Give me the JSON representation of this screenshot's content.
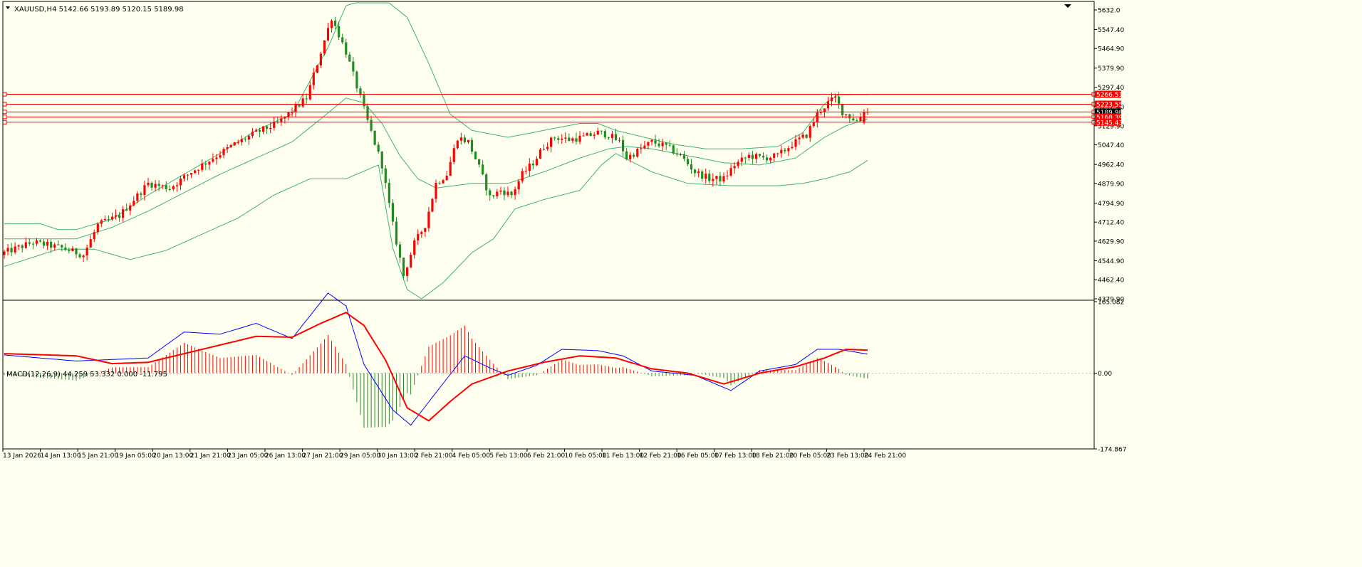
{
  "symbol_header": "XAUUSD,H4  5142.66 5193.89 5120.15 5189.98",
  "macd_header": "MACD(12,26,9) 44.259 53.332 0.000 -11.795",
  "colors": {
    "background": "#fffff0",
    "frame": "#000000",
    "bull": "#ff0000",
    "bear": "#228b22",
    "bands": "#3cb371",
    "level_line": "#ff0000",
    "macd_line": "#0000ff",
    "signal_line": "#ff0000",
    "hist_pos": "#ff0000",
    "hist_neg": "#228b22",
    "badge_text": "#ffffff",
    "current_badge": "#000000"
  },
  "chart_data": [
    {
      "type": "candlestick",
      "symbol": "XAUUSD",
      "timeframe": "H4",
      "ohlc_now": {
        "open": 5142.66,
        "high": 5193.89,
        "low": 5120.15,
        "close": 5189.98
      },
      "y_range": [
        4379.9,
        5632.0
      ],
      "price_ticks": [
        "5632.0",
        "5547.40",
        "5464.90",
        "5379.90",
        "5297.40",
        "5212.40",
        "5129.90",
        "5047.40",
        "4962.40",
        "4879.90",
        "4794.90",
        "4712.40",
        "4629.90",
        "4544.90",
        "4462.40",
        "4379.90"
      ],
      "horizontal_levels": [
        5266.51,
        5223.55,
        5189.98,
        5168.39,
        5145.43
      ],
      "level_labels": [
        "5266.51",
        "5223.55",
        "5189.98",
        "5168.39",
        "5145.43"
      ],
      "current_price_label": "5189.98",
      "x_tick_labels": [
        "13 Jan 2026",
        "14 Jan 13:00",
        "15 Jan 21:00",
        "19 Jan 05:00",
        "20 Jan 13:00",
        "21 Jan 21:00",
        "23 Jan 05:00",
        "26 Jan 13:00",
        "27 Jan 21:00",
        "29 Jan 05:00",
        "30 Jan 13:00",
        "2 Feb 21:00",
        "4 Feb 05:00",
        "5 Feb 13:00",
        "6 Feb 21:00",
        "10 Feb 05:00",
        "11 Feb 13:00",
        "12 Feb 21:00",
        "16 Feb 05:00",
        "17 Feb 13:00",
        "18 Feb 21:00",
        "20 Feb 05:00",
        "23 Feb 13:00",
        "24 Feb 21:00"
      ],
      "close_path": [
        [
          0,
          4580
        ],
        [
          8,
          4625
        ],
        [
          16,
          4600
        ],
        [
          22,
          4570
        ],
        [
          26,
          4700
        ],
        [
          32,
          4740
        ],
        [
          40,
          4880
        ],
        [
          46,
          4860
        ],
        [
          52,
          4930
        ],
        [
          58,
          4990
        ],
        [
          64,
          5050
        ],
        [
          70,
          5100
        ],
        [
          76,
          5140
        ],
        [
          84,
          5250
        ],
        [
          88,
          5450
        ],
        [
          91,
          5600
        ],
        [
          95,
          5450
        ],
        [
          98,
          5300
        ],
        [
          101,
          5150
        ],
        [
          105,
          4960
        ],
        [
          108,
          4700
        ],
        [
          111,
          4480
        ],
        [
          114,
          4620
        ],
        [
          117,
          4700
        ],
        [
          120,
          4880
        ],
        [
          123,
          4920
        ],
        [
          126,
          5080
        ],
        [
          129,
          5060
        ],
        [
          132,
          4950
        ],
        [
          135,
          4820
        ],
        [
          138,
          4850
        ],
        [
          141,
          4830
        ],
        [
          144,
          4920
        ],
        [
          147,
          4970
        ],
        [
          150,
          5040
        ],
        [
          153,
          5080
        ],
        [
          157,
          5070
        ],
        [
          161,
          5080
        ],
        [
          165,
          5100
        ],
        [
          168,
          5090
        ],
        [
          171,
          5060
        ],
        [
          173,
          4990
        ],
        [
          176,
          5020
        ],
        [
          180,
          5060
        ],
        [
          184,
          5040
        ],
        [
          188,
          5000
        ],
        [
          192,
          4930
        ],
        [
          196,
          4900
        ],
        [
          200,
          4900
        ],
        [
          203,
          4960
        ],
        [
          207,
          5000
        ],
        [
          211,
          4990
        ],
        [
          215,
          5000
        ],
        [
          219,
          5050
        ],
        [
          223,
          5090
        ],
        [
          226,
          5180
        ],
        [
          229,
          5230
        ],
        [
          231,
          5250
        ],
        [
          233,
          5190
        ],
        [
          235,
          5170
        ],
        [
          237,
          5150
        ],
        [
          239,
          5190
        ]
      ],
      "bollinger_middle": [
        [
          0,
          4640
        ],
        [
          20,
          4640
        ],
        [
          30,
          4690
        ],
        [
          40,
          4760
        ],
        [
          50,
          4840
        ],
        [
          60,
          4920
        ],
        [
          70,
          4990
        ],
        [
          80,
          5060
        ],
        [
          88,
          5160
        ],
        [
          95,
          5250
        ],
        [
          100,
          5230
        ],
        [
          105,
          5140
        ],
        [
          110,
          5000
        ],
        [
          115,
          4900
        ],
        [
          120,
          4860
        ],
        [
          130,
          4880
        ],
        [
          140,
          4880
        ],
        [
          150,
          4930
        ],
        [
          160,
          4990
        ],
        [
          168,
          5030
        ],
        [
          173,
          5040
        ],
        [
          180,
          5030
        ],
        [
          190,
          5000
        ],
        [
          200,
          4970
        ],
        [
          210,
          4960
        ],
        [
          220,
          4990
        ],
        [
          228,
          5080
        ],
        [
          234,
          5130
        ],
        [
          240,
          5160
        ]
      ],
      "bollinger_upper": [
        [
          0,
          4705
        ],
        [
          10,
          4705
        ],
        [
          15,
          4680
        ],
        [
          20,
          4680
        ],
        [
          30,
          4725
        ],
        [
          40,
          4830
        ],
        [
          50,
          4920
        ],
        [
          60,
          5010
        ],
        [
          70,
          5110
        ],
        [
          80,
          5180
        ],
        [
          90,
          5470
        ],
        [
          95,
          5650
        ],
        [
          104,
          5700
        ],
        [
          112,
          5600
        ],
        [
          118,
          5400
        ],
        [
          124,
          5180
        ],
        [
          130,
          5110
        ],
        [
          140,
          5080
        ],
        [
          150,
          5110
        ],
        [
          160,
          5140
        ],
        [
          165,
          5140
        ],
        [
          170,
          5110
        ],
        [
          178,
          5080
        ],
        [
          186,
          5050
        ],
        [
          195,
          5030
        ],
        [
          205,
          5030
        ],
        [
          215,
          5040
        ],
        [
          222,
          5100
        ],
        [
          228,
          5225
        ],
        [
          232,
          5265
        ],
        [
          240,
          5266
        ]
      ],
      "bollinger_lower": [
        [
          0,
          4520
        ],
        [
          10,
          4570
        ],
        [
          15,
          4595
        ],
        [
          25,
          4595
        ],
        [
          35,
          4550
        ],
        [
          45,
          4590
        ],
        [
          55,
          4660
        ],
        [
          65,
          4730
        ],
        [
          75,
          4830
        ],
        [
          85,
          4900
        ],
        [
          95,
          4900
        ],
        [
          104,
          4960
        ],
        [
          108,
          4600
        ],
        [
          112,
          4420
        ],
        [
          116,
          4380
        ],
        [
          122,
          4450
        ],
        [
          130,
          4580
        ],
        [
          136,
          4640
        ],
        [
          142,
          4770
        ],
        [
          150,
          4810
        ],
        [
          160,
          4850
        ],
        [
          166,
          4960
        ],
        [
          170,
          5010
        ],
        [
          180,
          4930
        ],
        [
          190,
          4880
        ],
        [
          202,
          4870
        ],
        [
          215,
          4870
        ],
        [
          222,
          4880
        ],
        [
          228,
          4900
        ],
        [
          235,
          4930
        ],
        [
          240,
          4980
        ]
      ]
    },
    {
      "type": "histogram+line",
      "name": "MACD(12,26,9)",
      "values_header": [
        44.259,
        53.332,
        0.0,
        -11.795
      ],
      "y_range": [
        -174.867,
        165.082
      ],
      "y_ticks": [
        "165.082",
        "0.00",
        "-174.867"
      ],
      "macd_path": [
        [
          0,
          42
        ],
        [
          20,
          28
        ],
        [
          40,
          35
        ],
        [
          50,
          95
        ],
        [
          60,
          90
        ],
        [
          70,
          115
        ],
        [
          80,
          80
        ],
        [
          90,
          185
        ],
        [
          95,
          155
        ],
        [
          100,
          20
        ],
        [
          108,
          -85
        ],
        [
          113,
          -120
        ],
        [
          120,
          -45
        ],
        [
          128,
          40
        ],
        [
          135,
          12
        ],
        [
          140,
          -5
        ],
        [
          148,
          18
        ],
        [
          155,
          55
        ],
        [
          165,
          52
        ],
        [
          172,
          40
        ],
        [
          180,
          5
        ],
        [
          192,
          -5
        ],
        [
          202,
          -40
        ],
        [
          210,
          5
        ],
        [
          220,
          20
        ],
        [
          226,
          55
        ],
        [
          232,
          55
        ],
        [
          240,
          44
        ]
      ],
      "signal_path": [
        [
          0,
          45
        ],
        [
          20,
          40
        ],
        [
          30,
          22
        ],
        [
          40,
          25
        ],
        [
          55,
          55
        ],
        [
          70,
          85
        ],
        [
          80,
          83
        ],
        [
          88,
          115
        ],
        [
          95,
          140
        ],
        [
          100,
          110
        ],
        [
          106,
          30
        ],
        [
          112,
          -80
        ],
        [
          118,
          -110
        ],
        [
          124,
          -65
        ],
        [
          130,
          -25
        ],
        [
          140,
          5
        ],
        [
          150,
          25
        ],
        [
          160,
          40
        ],
        [
          170,
          35
        ],
        [
          180,
          10
        ],
        [
          190,
          0
        ],
        [
          200,
          -25
        ],
        [
          210,
          0
        ],
        [
          220,
          15
        ],
        [
          228,
          35
        ],
        [
          234,
          55
        ],
        [
          240,
          53
        ]
      ]
    }
  ]
}
